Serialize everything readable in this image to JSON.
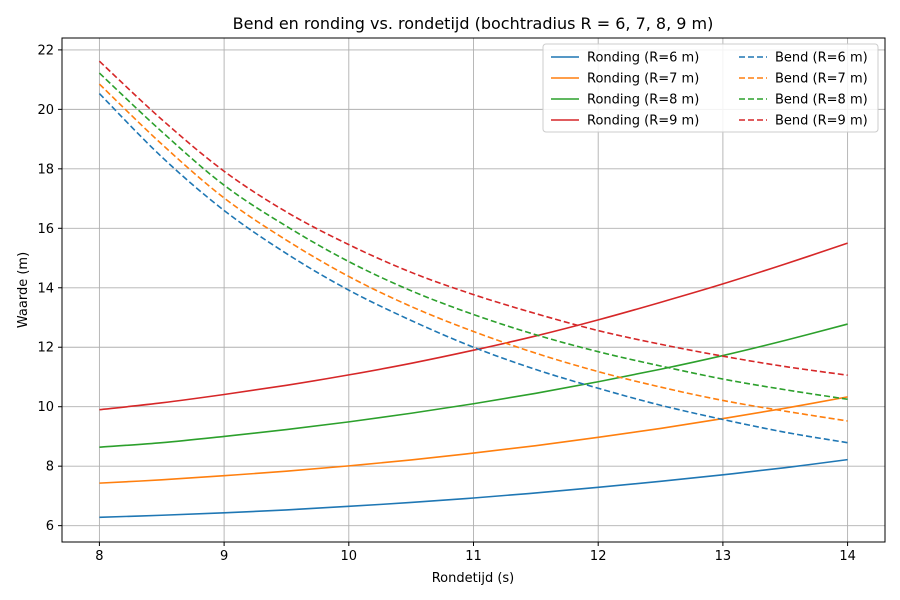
{
  "chart_data": {
    "type": "line",
    "title": "Bend en ronding vs. rondetijd (bochtradius R = 6, 7, 8, 9 m)",
    "xlabel": "Rondetijd (s)",
    "ylabel": "Waarde (m)",
    "xlim": [
      7.7,
      14.3
    ],
    "ylim": [
      5.45,
      22.4
    ],
    "xticks": [
      8,
      9,
      10,
      11,
      12,
      13,
      14
    ],
    "yticks": [
      6,
      8,
      10,
      12,
      14,
      16,
      18,
      20,
      22
    ],
    "grid": true,
    "legend_position": "top-right",
    "legend_columns": 2,
    "x": [
      8,
      8.5,
      9,
      9.5,
      10,
      10.5,
      11,
      11.5,
      12,
      12.5,
      13,
      13.5,
      14
    ],
    "series": [
      {
        "name": "Ronding (R=6 m)",
        "color": "#1f77b4",
        "dash": "solid",
        "values": [
          6.28,
          6.35,
          6.43,
          6.53,
          6.65,
          6.78,
          6.93,
          7.1,
          7.29,
          7.49,
          7.71,
          7.95,
          8.22
        ]
      },
      {
        "name": "Ronding (R=7 m)",
        "color": "#ff7f0e",
        "dash": "solid",
        "values": [
          7.43,
          7.54,
          7.68,
          7.83,
          8.01,
          8.21,
          8.44,
          8.69,
          8.97,
          9.27,
          9.6,
          9.95,
          10.33
        ]
      },
      {
        "name": "Ronding (R=8 m)",
        "color": "#2ca02c",
        "dash": "solid",
        "values": [
          8.64,
          8.79,
          9.0,
          9.23,
          9.49,
          9.78,
          10.1,
          10.45,
          10.84,
          11.26,
          11.72,
          12.23,
          12.78
        ]
      },
      {
        "name": "Ronding (R=9 m)",
        "color": "#d62728",
        "dash": "solid",
        "values": [
          9.9,
          10.13,
          10.41,
          10.72,
          11.07,
          11.46,
          11.9,
          12.38,
          12.92,
          13.51,
          14.13,
          14.8,
          15.5
        ]
      },
      {
        "name": "Bend (R=6 m)",
        "color": "#1f77b4",
        "dash": "dashed",
        "values": [
          20.53,
          18.4,
          16.6,
          15.15,
          13.92,
          12.9,
          12.0,
          11.25,
          10.62,
          10.05,
          9.57,
          9.14,
          8.79
        ]
      },
      {
        "name": "Bend (R=7 m)",
        "color": "#ff7f0e",
        "dash": "dashed",
        "values": [
          20.85,
          18.83,
          17.02,
          15.6,
          14.38,
          13.37,
          12.53,
          11.8,
          11.18,
          10.66,
          10.21,
          9.85,
          9.52
        ]
      },
      {
        "name": "Bend (R=8 m)",
        "color": "#2ca02c",
        "dash": "dashed",
        "values": [
          21.22,
          19.25,
          17.45,
          16.07,
          14.88,
          13.9,
          13.1,
          12.42,
          11.85,
          11.37,
          10.93,
          10.57,
          10.25
        ]
      },
      {
        "name": "Bend (R=9 m)",
        "color": "#d62728",
        "dash": "dashed",
        "values": [
          21.62,
          19.66,
          17.92,
          16.55,
          15.45,
          14.52,
          13.77,
          13.13,
          12.56,
          12.1,
          11.7,
          11.35,
          11.06
        ]
      }
    ]
  }
}
